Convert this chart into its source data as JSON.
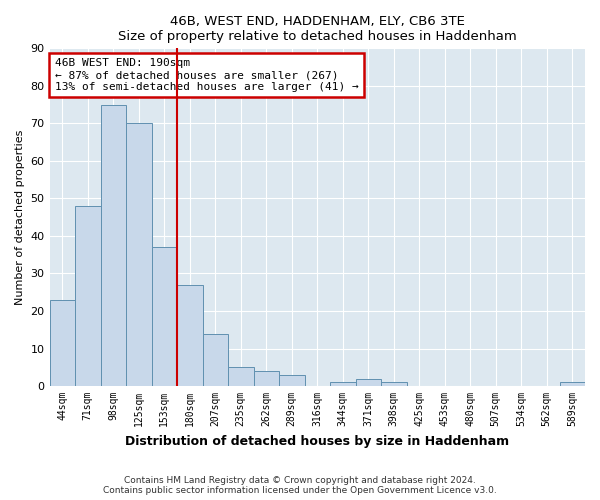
{
  "title": "46B, WEST END, HADDENHAM, ELY, CB6 3TE",
  "subtitle": "Size of property relative to detached houses in Haddenham",
  "xlabel": "Distribution of detached houses by size in Haddenham",
  "ylabel": "Number of detached properties",
  "bin_labels": [
    "44sqm",
    "71sqm",
    "98sqm",
    "125sqm",
    "153sqm",
    "180sqm",
    "207sqm",
    "235sqm",
    "262sqm",
    "289sqm",
    "316sqm",
    "344sqm",
    "371sqm",
    "398sqm",
    "425sqm",
    "453sqm",
    "480sqm",
    "507sqm",
    "534sqm",
    "562sqm",
    "589sqm"
  ],
  "bar_heights": [
    23,
    48,
    75,
    70,
    37,
    27,
    14,
    5,
    4,
    3,
    0,
    1,
    2,
    1,
    0,
    0,
    0,
    0,
    0,
    0,
    1
  ],
  "bar_color": "#c8d8ea",
  "bar_edge_color": "#6090b0",
  "vline_x": 5.0,
  "vline_color": "#cc0000",
  "annotation_line1": "46B WEST END: 190sqm",
  "annotation_line2": "← 87% of detached houses are smaller (267)",
  "annotation_line3": "13% of semi-detached houses are larger (41) →",
  "annotation_box_color": "#ffffff",
  "annotation_box_edge": "#cc0000",
  "ylim": [
    0,
    90
  ],
  "yticks": [
    0,
    10,
    20,
    30,
    40,
    50,
    60,
    70,
    80,
    90
  ],
  "footer_text": "Contains HM Land Registry data © Crown copyright and database right 2024.\nContains public sector information licensed under the Open Government Licence v3.0.",
  "bg_color": "#ffffff",
  "plot_bg_color": "#dde8f0",
  "grid_color": "#ffffff"
}
